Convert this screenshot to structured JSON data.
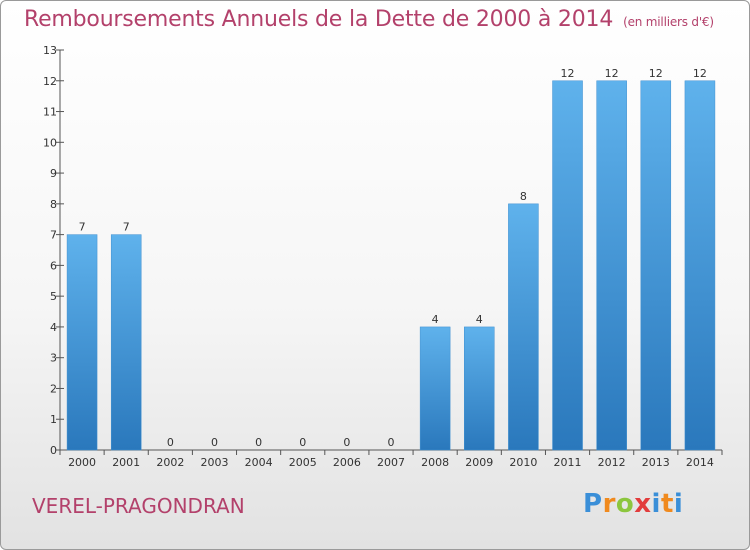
{
  "header": {
    "title": "Remboursements Annuels de la Dette de 2000 à 2014",
    "unit": "(en milliers d'€)"
  },
  "footer": {
    "commune": "VEREL-PRAGONDRAN",
    "logo": {
      "p": "P",
      "r": "r",
      "o": "o",
      "x": "x",
      "i": "i",
      "t": "t",
      "i2": "i"
    }
  },
  "colors": {
    "title": "#b3416b",
    "bar_top": "#5aaeea",
    "bar_bottom": "#2b7bbf",
    "axis": "#555555"
  },
  "chart_data": {
    "type": "bar",
    "title": "Remboursements Annuels de la Dette de 2000 à 2014",
    "xlabel": "",
    "ylabel": "",
    "categories": [
      "2000",
      "2001",
      "2002",
      "2003",
      "2004",
      "2005",
      "2006",
      "2007",
      "2008",
      "2009",
      "2010",
      "2011",
      "2012",
      "2013",
      "2014"
    ],
    "values": [
      7,
      7,
      0,
      0,
      0,
      0,
      0,
      0,
      4,
      4,
      8,
      12,
      12,
      12,
      12
    ],
    "ylim": [
      0,
      13
    ],
    "yticks": [
      0,
      1,
      2,
      3,
      4,
      5,
      6,
      7,
      8,
      9,
      10,
      11,
      12,
      13
    ],
    "grid": false,
    "legend": "none"
  }
}
